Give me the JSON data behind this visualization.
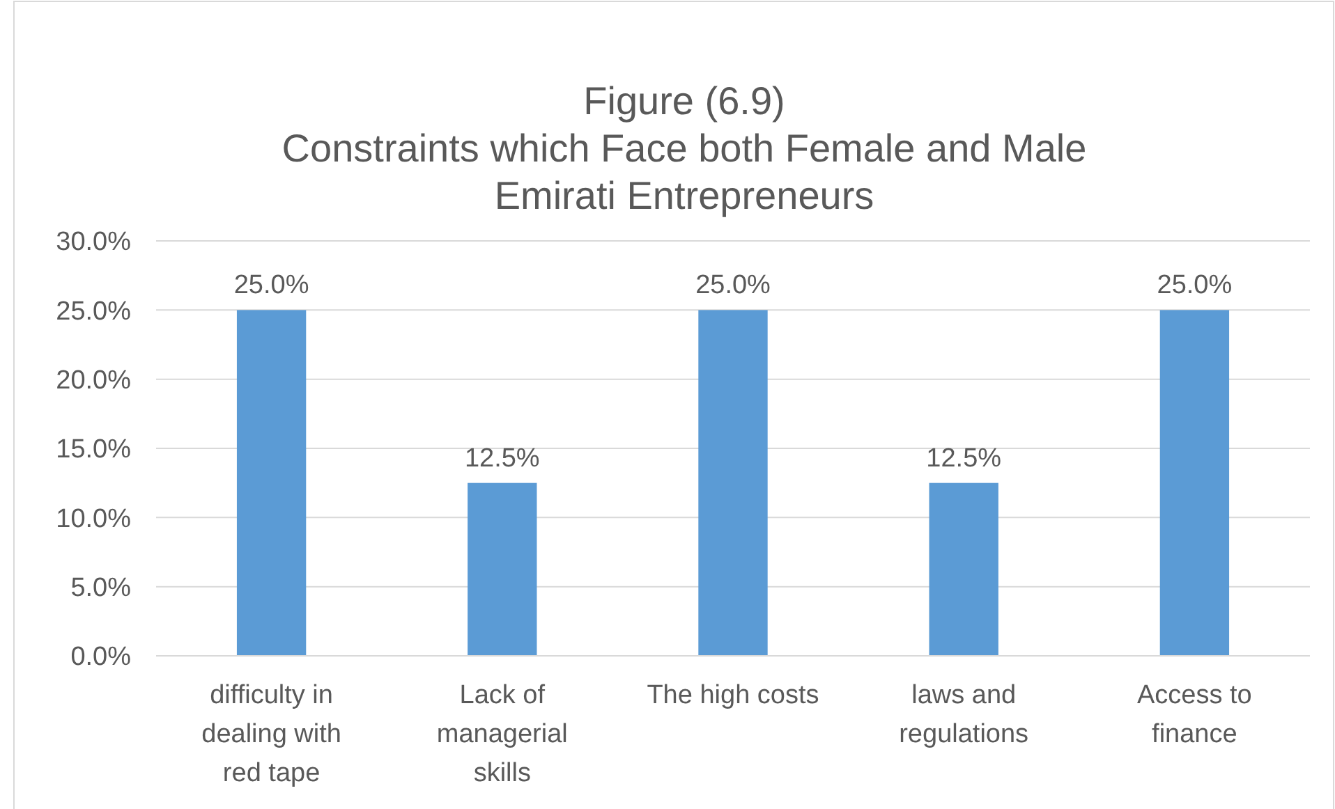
{
  "chart_data": {
    "type": "bar",
    "title": "Figure (6.9)",
    "subtitle": "Constraints which Face both Female and Male Emirati Entrepreneurs",
    "categories": [
      "difficulty in dealing with red tape",
      "Lack of managerial skills",
      "The high costs",
      "laws and regulations",
      "Access to finance"
    ],
    "values": [
      25.0,
      12.5,
      25.0,
      12.5,
      25.0
    ],
    "value_labels": [
      "25.0%",
      "12.5%",
      "25.0%",
      "12.5%",
      "25.0%"
    ],
    "color": "#5b9bd5",
    "ylim": [
      0,
      30
    ],
    "yticks": [
      {
        "value": 0,
        "label": "0.0%"
      },
      {
        "value": 5,
        "label": "5.0%"
      },
      {
        "value": 10,
        "label": "10.0%"
      },
      {
        "value": 15,
        "label": "15.0%"
      },
      {
        "value": 20,
        "label": "20.0%"
      },
      {
        "value": 25,
        "label": "25.0%"
      },
      {
        "value": 30,
        "label": "30.0%"
      }
    ],
    "grid": "y"
  }
}
